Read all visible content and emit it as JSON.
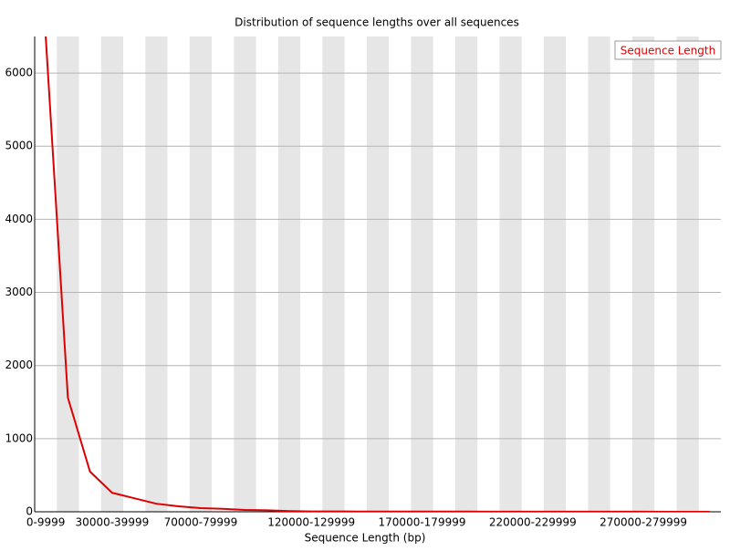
{
  "chart_data": {
    "type": "line",
    "title": "Distribution of sequence lengths over all sequences",
    "x_label": "Sequence Length (bp)",
    "categories": [
      "0-9999",
      null,
      null,
      "30000-39999",
      null,
      null,
      null,
      "70000-79999",
      null,
      null,
      null,
      null,
      "120000-129999",
      null,
      null,
      null,
      null,
      "170000-179999",
      null,
      null,
      null,
      null,
      "220000-229999",
      null,
      null,
      null,
      null,
      "270000-279999",
      null,
      null,
      null
    ],
    "series": [
      {
        "name": "Sequence Length",
        "color": "#dd0000",
        "values": [
          6500,
          1560,
          550,
          260,
          185,
          110,
          75,
          50,
          40,
          25,
          20,
          10,
          5,
          5,
          4,
          3,
          3,
          2,
          2,
          2,
          1,
          1,
          1,
          1,
          1,
          1,
          1,
          1,
          0,
          0,
          0
        ]
      }
    ],
    "ylim": [
      0,
      6500
    ],
    "yticks": [
      0,
      1000,
      2000,
      3000,
      4000,
      5000,
      6000
    ],
    "grid": true,
    "legend": "top-right"
  }
}
